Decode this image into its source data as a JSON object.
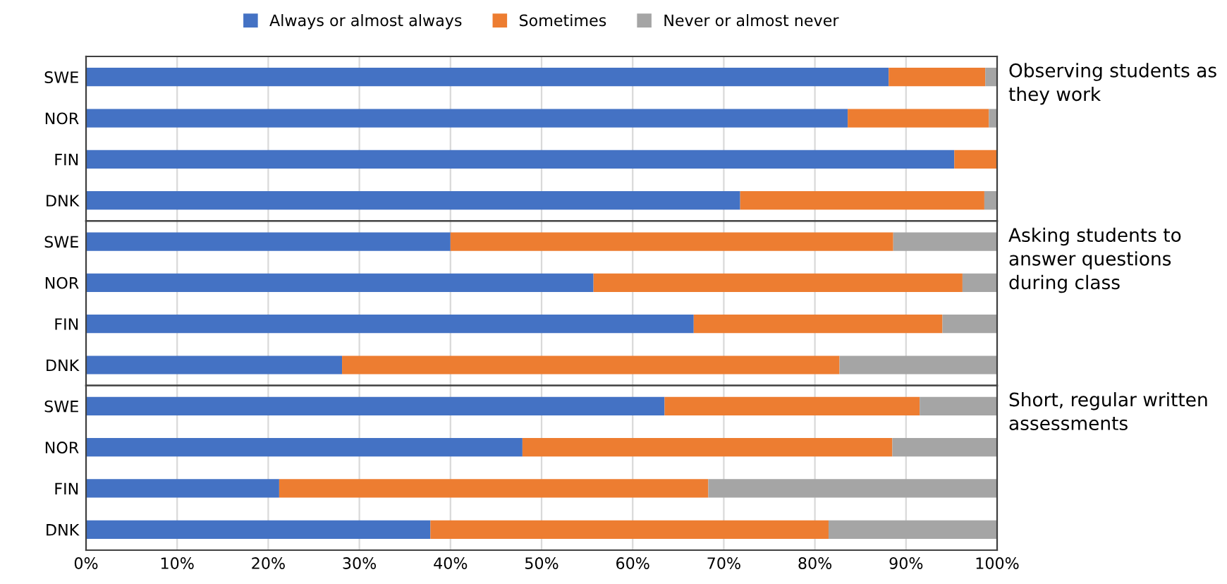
{
  "chart_data": [
    {
      "type": "bar",
      "orientation": "horizontal",
      "stacked": true,
      "annotations": [
        "Observing students as they work"
      ],
      "categories": [
        "SWE",
        "NOR",
        "FIN",
        "DNK"
      ],
      "legend": "top",
      "grid": "x",
      "tick_labels": "y",
      "xlim": [
        0,
        100
      ],
      "series": [
        {
          "name": "Always or almost always",
          "color": "#4472c4",
          "values": [
            88.1,
            83.6,
            95.3,
            71.8
          ]
        },
        {
          "name": "Sometimes",
          "color": "#ed7d31",
          "values": [
            10.6,
            15.5,
            4.7,
            26.8
          ]
        },
        {
          "name": "Never or almost never",
          "color": "#a5a5a5",
          "values": [
            1.3,
            0.9,
            0,
            1.4
          ]
        }
      ]
    },
    {
      "type": "bar",
      "orientation": "horizontal",
      "stacked": true,
      "annotations": [
        "Asking students to answer questions during class"
      ],
      "categories": [
        "SWE",
        "NOR",
        "FIN",
        "DNK"
      ],
      "grid": "x",
      "tick_labels": "y",
      "xlim": [
        0,
        100
      ],
      "series": [
        {
          "color": "#4472c4",
          "values": [
            40.0,
            55.7,
            66.7,
            28.1
          ]
        },
        {
          "color": "#ed7d31",
          "values": [
            48.6,
            40.5,
            27.3,
            54.6
          ]
        },
        {
          "color": "#a5a5a5",
          "values": [
            11.4,
            3.8,
            6.0,
            17.3
          ]
        }
      ]
    },
    {
      "type": "bar",
      "orientation": "horizontal",
      "stacked": true,
      "annotations": [
        "Short, regular written assessments"
      ],
      "categories": [
        "SWE",
        "NOR",
        "FIN",
        "DNK"
      ],
      "grid": "x",
      "xlim": [
        0,
        100
      ],
      "xticks": [
        {
          "value": 0,
          "label": "0%"
        },
        {
          "value": 10,
          "label": "10%"
        },
        {
          "value": 20,
          "label": "20%"
        },
        {
          "value": 30,
          "label": "30%"
        },
        {
          "value": 40,
          "label": "40%"
        },
        {
          "value": 50,
          "label": "50%"
        },
        {
          "value": 60,
          "label": "60%"
        },
        {
          "value": 70,
          "label": "70%"
        },
        {
          "value": 80,
          "label": "80%"
        },
        {
          "value": 90,
          "label": "90%"
        },
        {
          "value": 100,
          "label": "100%"
        }
      ],
      "series": [
        {
          "color": "#4472c4",
          "values": [
            63.5,
            47.9,
            21.2,
            37.8
          ]
        },
        {
          "color": "#ed7d31",
          "values": [
            28.0,
            40.6,
            47.1,
            43.7
          ]
        },
        {
          "color": "#a5a5a5",
          "values": [
            8.5,
            11.5,
            31.7,
            18.5
          ]
        }
      ]
    }
  ]
}
